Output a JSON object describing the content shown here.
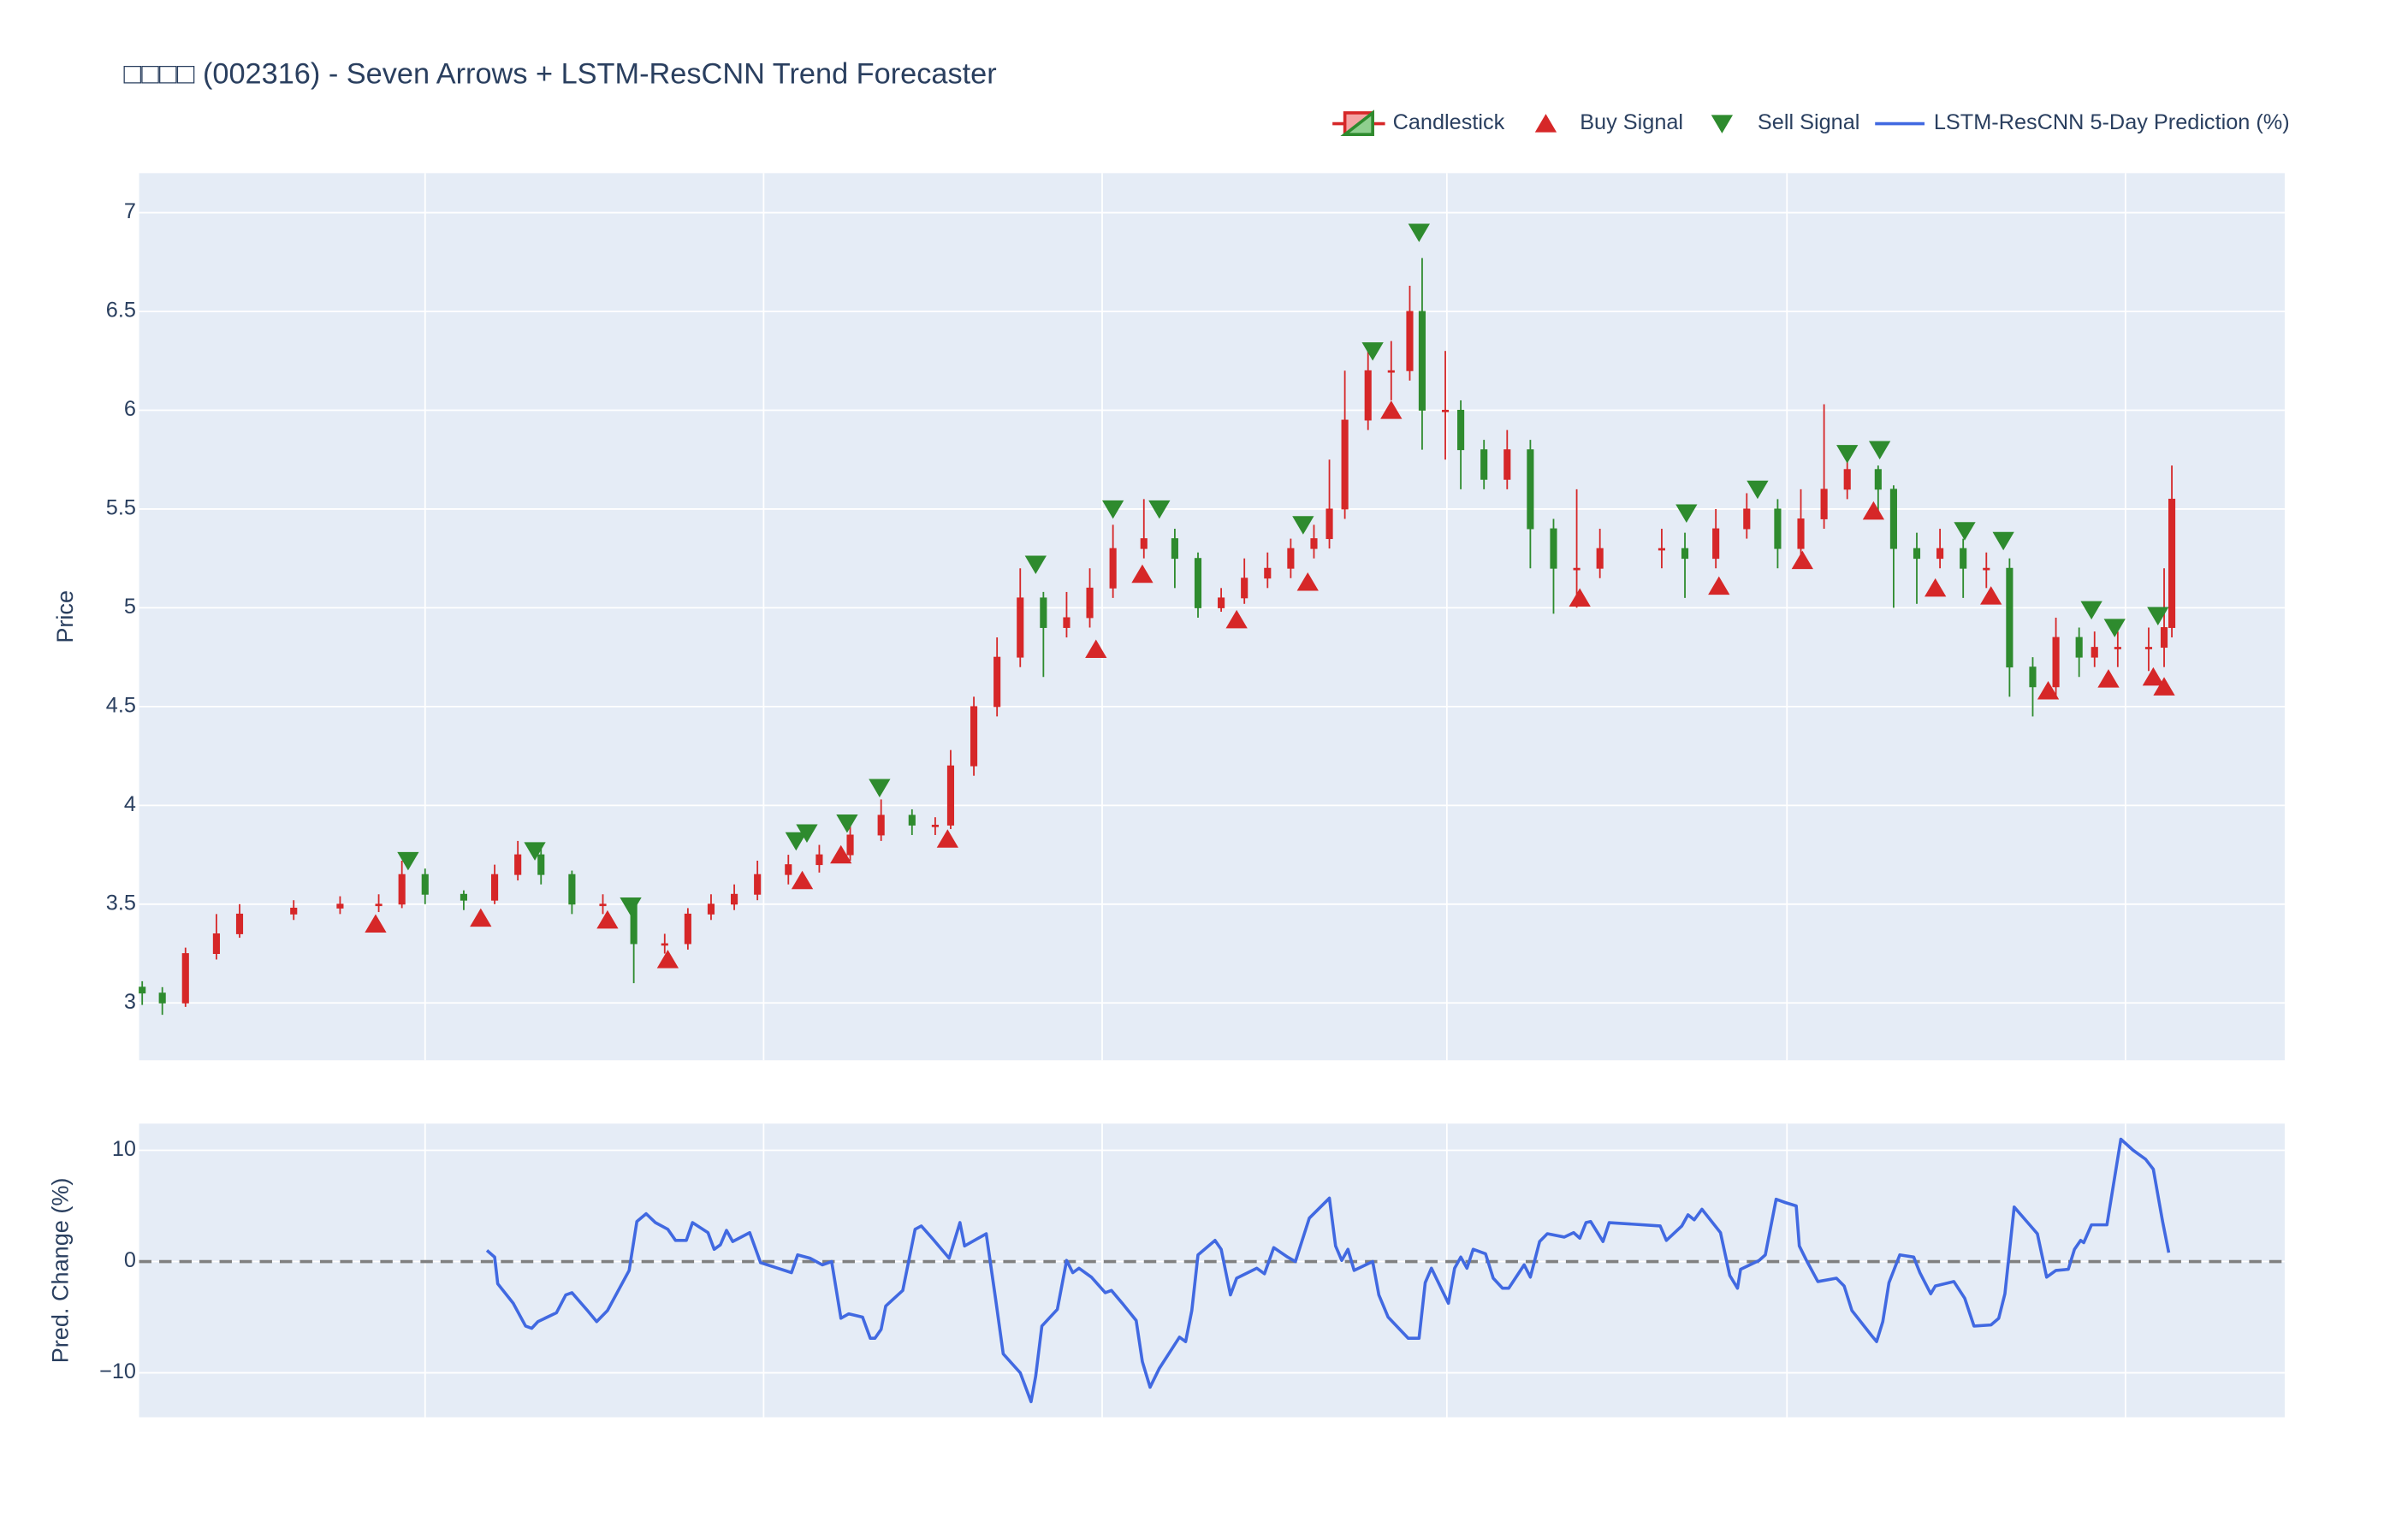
{
  "chart_data": [
    {
      "type": "candlestick",
      "title": "□□□□ (002316) - Seven Arrows + LSTM-ResCNN Trend Forecaster",
      "y_label": "Price",
      "name": "Candlestick",
      "legend": "top-right",
      "increasing_color": "#d62728",
      "decreasing_color": "#2e8b2e",
      "x": [
        0,
        13,
        28,
        48,
        63,
        98,
        128,
        153,
        168,
        183,
        208,
        228,
        243,
        258,
        278,
        298,
        318,
        338,
        353,
        368,
        383,
        398,
        418,
        438,
        458,
        478,
        498,
        513,
        523,
        538,
        553,
        568,
        583,
        598,
        613,
        628,
        648,
        668,
        683,
        698,
        713,
        728,
        743,
        758,
        768,
        778,
        793,
        808,
        820,
        828,
        843,
        853,
        868,
        883,
        898,
        913,
        928,
        943,
        983,
        998,
        1018,
        1038,
        1058,
        1073,
        1088,
        1103,
        1123,
        1133,
        1148,
        1163,
        1178,
        1193,
        1208,
        1223,
        1238,
        1253,
        1263,
        1278,
        1298,
        1308,
        1313
      ],
      "open": [
        3.08,
        3.05,
        3.0,
        3.25,
        3.35,
        3.45,
        3.48,
        3.5,
        3.5,
        3.65,
        3.55,
        3.52,
        3.65,
        3.75,
        3.65,
        3.5,
        3.5,
        3.3,
        3.3,
        3.45,
        3.5,
        3.55,
        3.65,
        3.7,
        3.75,
        3.85,
        3.95,
        3.9,
        3.9,
        4.2,
        4.5,
        4.75,
        5.05,
        4.9,
        4.95,
        5.1,
        5.3,
        5.35,
        5.25,
        5.0,
        5.05,
        5.15,
        5.2,
        5.3,
        5.35,
        5.5,
        5.95,
        6.2,
        6.2,
        6.5,
        6.0,
        6.0,
        5.8,
        5.65,
        5.8,
        5.4,
        5.2,
        5.2,
        5.3,
        5.3,
        5.25,
        5.4,
        5.5,
        5.3,
        5.45,
        5.6,
        5.7,
        5.6,
        5.3,
        5.25,
        5.3,
        5.2,
        5.2,
        4.7,
        4.6,
        4.85,
        4.75,
        4.8,
        4.8,
        4.8,
        4.9
      ],
      "high": [
        3.11,
        3.08,
        3.28,
        3.45,
        3.5,
        3.52,
        3.54,
        3.55,
        3.72,
        3.68,
        3.57,
        3.7,
        3.82,
        3.78,
        3.67,
        3.55,
        3.52,
        3.35,
        3.48,
        3.55,
        3.6,
        3.72,
        3.75,
        3.8,
        3.9,
        4.03,
        3.98,
        3.94,
        4.28,
        4.55,
        4.85,
        5.2,
        5.08,
        5.08,
        5.2,
        5.42,
        5.55,
        5.4,
        5.28,
        5.1,
        5.25,
        5.28,
        5.35,
        5.42,
        5.75,
        6.2,
        6.3,
        6.35,
        6.63,
        6.77,
        6.3,
        6.05,
        5.85,
        5.9,
        5.85,
        5.45,
        5.6,
        5.4,
        5.4,
        5.38,
        5.5,
        5.58,
        5.55,
        5.6,
        6.03,
        5.78,
        5.72,
        5.62,
        5.38,
        5.4,
        5.35,
        5.28,
        5.25,
        4.75,
        4.95,
        4.9,
        4.88,
        4.88,
        4.9,
        5.2,
        5.72
      ],
      "low": [
        2.99,
        2.94,
        2.98,
        3.22,
        3.33,
        3.42,
        3.45,
        3.46,
        3.48,
        3.5,
        3.47,
        3.5,
        3.62,
        3.6,
        3.45,
        3.45,
        3.1,
        3.25,
        3.27,
        3.42,
        3.47,
        3.52,
        3.6,
        3.66,
        3.72,
        3.82,
        3.85,
        3.85,
        3.88,
        4.15,
        4.45,
        4.7,
        4.65,
        4.85,
        4.9,
        5.05,
        5.25,
        5.1,
        4.95,
        4.98,
        5.02,
        5.1,
        5.15,
        5.25,
        5.3,
        5.45,
        5.9,
        6.05,
        6.15,
        5.8,
        5.75,
        5.6,
        5.6,
        5.6,
        5.2,
        4.97,
        5.0,
        5.15,
        5.2,
        5.05,
        5.2,
        5.35,
        5.2,
        5.25,
        5.4,
        5.55,
        5.45,
        5.0,
        5.02,
        5.2,
        5.05,
        5.1,
        4.55,
        4.45,
        4.55,
        4.65,
        4.7,
        4.7,
        4.68,
        4.7,
        4.85
      ],
      "close": [
        3.05,
        3.0,
        3.25,
        3.35,
        3.45,
        3.48,
        3.5,
        3.5,
        3.65,
        3.55,
        3.52,
        3.65,
        3.75,
        3.65,
        3.5,
        3.5,
        3.3,
        3.3,
        3.45,
        3.5,
        3.55,
        3.65,
        3.7,
        3.75,
        3.85,
        3.95,
        3.9,
        3.9,
        4.2,
        4.5,
        4.75,
        5.05,
        4.9,
        4.95,
        5.1,
        5.3,
        5.35,
        5.25,
        5.0,
        5.05,
        5.15,
        5.2,
        5.3,
        5.35,
        5.5,
        5.95,
        6.2,
        6.2,
        6.5,
        6.0,
        6.0,
        5.8,
        5.65,
        5.8,
        5.4,
        5.2,
        5.2,
        5.3,
        5.3,
        5.25,
        5.4,
        5.5,
        5.3,
        5.45,
        5.6,
        5.7,
        5.6,
        5.3,
        5.25,
        5.3,
        5.2,
        5.2,
        4.7,
        4.6,
        4.85,
        4.75,
        4.8,
        4.8,
        4.8,
        4.9,
        5.55
      ],
      "signals": [
        {
          "name": "Buy Signal",
          "marker": "triangle-up",
          "color": "#d62728",
          "x": [
            151,
            219,
            301,
            340,
            427,
            452,
            521,
            617,
            647,
            708,
            754,
            808,
            930,
            1020,
            1074,
            1120,
            1160,
            1196,
            1233,
            1272,
            1301,
            1308
          ],
          "values": [
            3.4,
            3.43,
            3.42,
            3.22,
            3.62,
            3.75,
            3.83,
            4.79,
            5.17,
            4.94,
            5.13,
            6.0,
            5.05,
            5.11,
            5.24,
            5.49,
            5.1,
            5.06,
            4.58,
            4.64,
            4.65,
            4.6
          ]
        },
        {
          "name": "Sell Signal",
          "marker": "triangle-down",
          "color": "#2e8b2e",
          "x": [
            172,
            254,
            316,
            423,
            430,
            456,
            477,
            578,
            628,
            658,
            751,
            796,
            826,
            999,
            1045,
            1103,
            1124,
            1179,
            1204,
            1261,
            1276,
            1304
          ],
          "values": [
            3.72,
            3.77,
            3.49,
            3.82,
            3.86,
            3.91,
            4.09,
            5.22,
            5.5,
            5.5,
            5.42,
            6.3,
            6.9,
            5.48,
            5.6,
            5.78,
            5.8,
            5.39,
            5.34,
            4.99,
            4.9,
            4.96
          ]
        }
      ],
      "xlim": [
        -2,
        1386
      ],
      "xticks": [
        183,
        402,
        621,
        844,
        1064,
        1283
      ],
      "ylim": [
        2.71,
        7.2
      ],
      "yticks": [
        3,
        3.5,
        4,
        4.5,
        5,
        5.5,
        6,
        6.5,
        7
      ],
      "grid": true
    },
    {
      "type": "line",
      "y_label": "Pred. Change (%)",
      "series": [
        {
          "name": "LSTM-ResCNN 5-Day Prediction (%)",
          "color": "#4169e1",
          "x": [
            223,
            228,
            230,
            240,
            248,
            252,
            256,
            268,
            274,
            278,
            288,
            294,
            301,
            315,
            320,
            326,
            332,
            340,
            345,
            352,
            356,
            366,
            370,
            374,
            378,
            382,
            393,
            400,
            420,
            424,
            432,
            440,
            446,
            452,
            457,
            466,
            471,
            474,
            478,
            481,
            492,
            500,
            504,
            511,
            522,
            529,
            532,
            546,
            552,
            557,
            568,
            575,
            578,
            582,
            592,
            598,
            602,
            606,
            614,
            623,
            627,
            634,
            643,
            647,
            652,
            658,
            671,
            675,
            679,
            683,
            694,
            698,
            704,
            708,
            721,
            726,
            732,
            741,
            746,
            755,
            768,
            772,
            776,
            780,
            784,
            796,
            800,
            806,
            819,
            826,
            830,
            834,
            845,
            849,
            853,
            857,
            861,
            869,
            874,
            880,
            884,
            894,
            898,
            904,
            909,
            920,
            926,
            930,
            934,
            937,
            945,
            949,
            982,
            986,
            996,
            1000,
            1004,
            1009,
            1021,
            1027,
            1032,
            1034,
            1046,
            1050,
            1057,
            1063,
            1070,
            1072,
            1077,
            1084,
            1096,
            1101,
            1106,
            1119,
            1122,
            1126,
            1130,
            1137,
            1146,
            1150,
            1157,
            1160,
            1172,
            1179,
            1185,
            1196,
            1201,
            1205,
            1211,
            1221,
            1226,
            1232,
            1238,
            1246,
            1250,
            1254,
            1256,
            1261,
            1271,
            1280,
            1288,
            1296,
            1301,
            1307,
            1311
          ],
          "values": [
            1.0,
            0.4,
            -2,
            -3.75,
            -5.8,
            -6,
            -5.4,
            -4.6,
            -3,
            -2.8,
            -4.4,
            -5.4,
            -4.4,
            -0.8,
            3.6,
            4.3,
            3.5,
            2.9,
            1.9,
            1.9,
            3.5,
            2.6,
            1.1,
            1.5,
            2.8,
            1.8,
            2.6,
            -0.1,
            -1,
            0.6,
            0.3,
            -0.3,
            0,
            -5.1,
            -4.7,
            -5,
            -6.9,
            -6.9,
            -6.1,
            -4,
            -2.6,
            2.9,
            3.2,
            2.1,
            0.3,
            3.5,
            1.4,
            2.5,
            -3.3,
            -8.3,
            -10,
            -12.6,
            -10.3,
            -5.8,
            -4.3,
            0.1,
            -1,
            -0.6,
            -1.4,
            -2.8,
            -2.6,
            -3.75,
            -5.3,
            -9,
            -11.3,
            -9.6,
            -6.8,
            -7.2,
            -4.4,
            0.6,
            1.9,
            1.1,
            -3,
            -1.5,
            -0.6,
            -1.1,
            1.25,
            0.4,
            0,
            3.9,
            5.7,
            1.4,
            0.1,
            1.1,
            -0.8,
            0,
            -3,
            -5,
            -6.9,
            -6.9,
            -1.9,
            -0.6,
            -3.75,
            -0.6,
            0.4,
            -0.6,
            1.1,
            0.7,
            -1.5,
            -2.4,
            -2.4,
            -0.3,
            -1.4,
            1.8,
            2.5,
            2.2,
            2.6,
            2.1,
            3.5,
            3.6,
            1.8,
            3.5,
            3.2,
            1.9,
            3.2,
            4.2,
            3.75,
            4.7,
            2.6,
            -1.25,
            -2.4,
            -0.7,
            0.1,
            0.6,
            5.6,
            5.3,
            5,
            1.4,
            0,
            -1.8,
            -1.5,
            -2.2,
            -4.4,
            -6.7,
            -7.2,
            -5.4,
            -1.9,
            0.6,
            0.4,
            -1,
            -2.9,
            -2.2,
            -1.8,
            -3.3,
            -5.8,
            -5.7,
            -5.1,
            -2.9,
            4.9,
            3.3,
            2.5,
            -1.4,
            -0.8,
            -0.7,
            1.1,
            1.9,
            1.7,
            3.3,
            3.3,
            11,
            10,
            9.2,
            8.3,
            3.6,
            0.8
          ]
        }
      ],
      "reference_line": {
        "value": 0,
        "color": "#808080",
        "dash": true
      },
      "xlim": [
        -2,
        1386
      ],
      "xticks": [
        183,
        402,
        621,
        844,
        1064,
        1283
      ],
      "ylim": [
        -14,
        12.4
      ],
      "yticks": [
        {
          "value": -10,
          "label": "−10"
        },
        0,
        10
      ],
      "grid": true
    }
  ]
}
